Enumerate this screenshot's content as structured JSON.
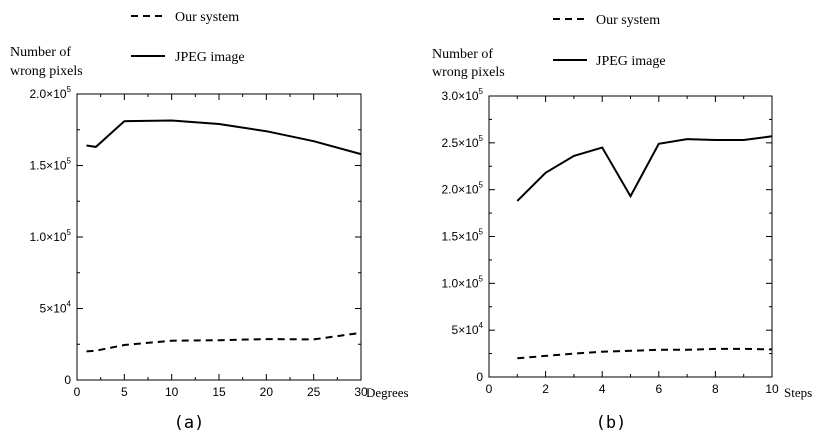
{
  "chart_data": [
    {
      "type": "line",
      "subtitle": "(a)",
      "ylabel": [
        "Number of",
        "wrong pixels"
      ],
      "xlabel": "Degrees",
      "xlim": [
        0,
        30
      ],
      "ylim": [
        0,
        200000
      ],
      "x_ticks": [
        0,
        5,
        10,
        15,
        20,
        25,
        30
      ],
      "y_ticks": [
        {
          "value": 0,
          "mant": "0",
          "exp": ""
        },
        {
          "value": 50000,
          "mant": "5×10",
          "exp": "4"
        },
        {
          "value": 100000,
          "mant": "1.0×10",
          "exp": "5"
        },
        {
          "value": 150000,
          "mant": "1.5×10",
          "exp": "5"
        },
        {
          "value": 200000,
          "mant": "2.0×10",
          "exp": "5"
        }
      ],
      "legend_placement": "top",
      "series": [
        {
          "name": "Our system",
          "style": "dashed",
          "x": [
            1,
            2,
            5,
            10,
            15,
            20,
            25,
            30
          ],
          "y": [
            20000,
            20500,
            24500,
            27500,
            27800,
            28600,
            28400,
            33000
          ]
        },
        {
          "name": "JPEG image",
          "style": "solid",
          "x": [
            1,
            2,
            5,
            10,
            15,
            20,
            25,
            30
          ],
          "y": [
            164000,
            163000,
            181000,
            181500,
            179000,
            174000,
            167000,
            158000
          ]
        }
      ]
    },
    {
      "type": "line",
      "subtitle": "(b)",
      "ylabel": [
        "Number of",
        "wrong pixels"
      ],
      "xlabel": "Steps",
      "xlim": [
        0,
        10
      ],
      "ylim": [
        0,
        300000
      ],
      "x_ticks": [
        0,
        2,
        4,
        6,
        8,
        10
      ],
      "y_ticks": [
        {
          "value": 0,
          "mant": "0",
          "exp": ""
        },
        {
          "value": 50000,
          "mant": "5×10",
          "exp": "4"
        },
        {
          "value": 100000,
          "mant": "1.0×10",
          "exp": "5"
        },
        {
          "value": 150000,
          "mant": "1.5×10",
          "exp": "5"
        },
        {
          "value": 200000,
          "mant": "2.0×10",
          "exp": "5"
        },
        {
          "value": 250000,
          "mant": "2.5×10",
          "exp": "5"
        },
        {
          "value": 300000,
          "mant": "3.0×10",
          "exp": "5"
        }
      ],
      "legend_placement": "top",
      "series": [
        {
          "name": "Our system",
          "style": "dashed",
          "x": [
            1,
            2,
            3,
            4,
            5,
            6,
            7,
            8,
            9,
            10
          ],
          "y": [
            20000,
            22500,
            25000,
            27000,
            28000,
            29000,
            29000,
            30000,
            30000,
            29500
          ]
        },
        {
          "name": "JPEG image",
          "style": "solid",
          "x": [
            1,
            2,
            3,
            4,
            5,
            6,
            7,
            8,
            9,
            10
          ],
          "y": [
            188000,
            218000,
            236000,
            245000,
            193000,
            249000,
            254000,
            253000,
            253000,
            257000
          ]
        }
      ]
    }
  ]
}
